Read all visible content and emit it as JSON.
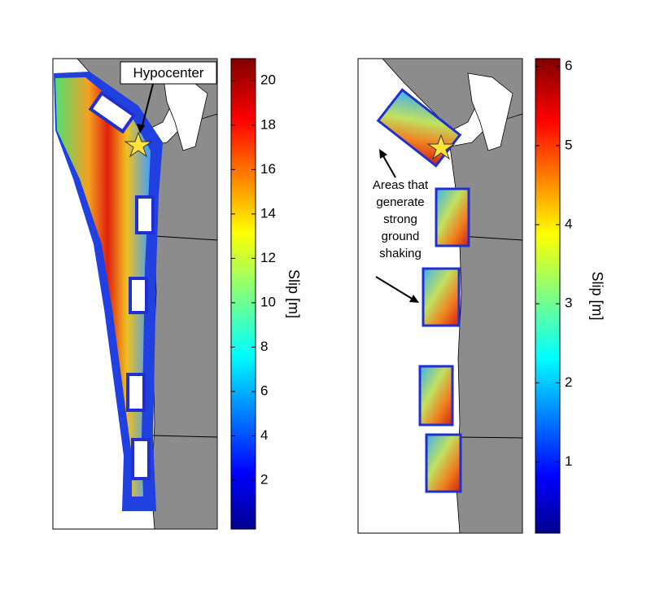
{
  "panels": [
    {
      "annotation": [
        "Hypocenter"
      ],
      "colorbar": {
        "label": "Slip [m]",
        "lim": [
          -0.2,
          21
        ],
        "ticks": [
          2,
          4,
          6,
          8,
          10,
          12,
          14,
          16,
          18,
          20
        ]
      }
    },
    {
      "annotation": [
        "Areas that",
        "generate",
        "strong",
        "ground",
        "shaking"
      ],
      "colorbar": {
        "label": "Slip [m]",
        "lim": [
          0.1,
          6.1
        ],
        "ticks": [
          1,
          2,
          3,
          4,
          5,
          6
        ]
      }
    }
  ]
}
